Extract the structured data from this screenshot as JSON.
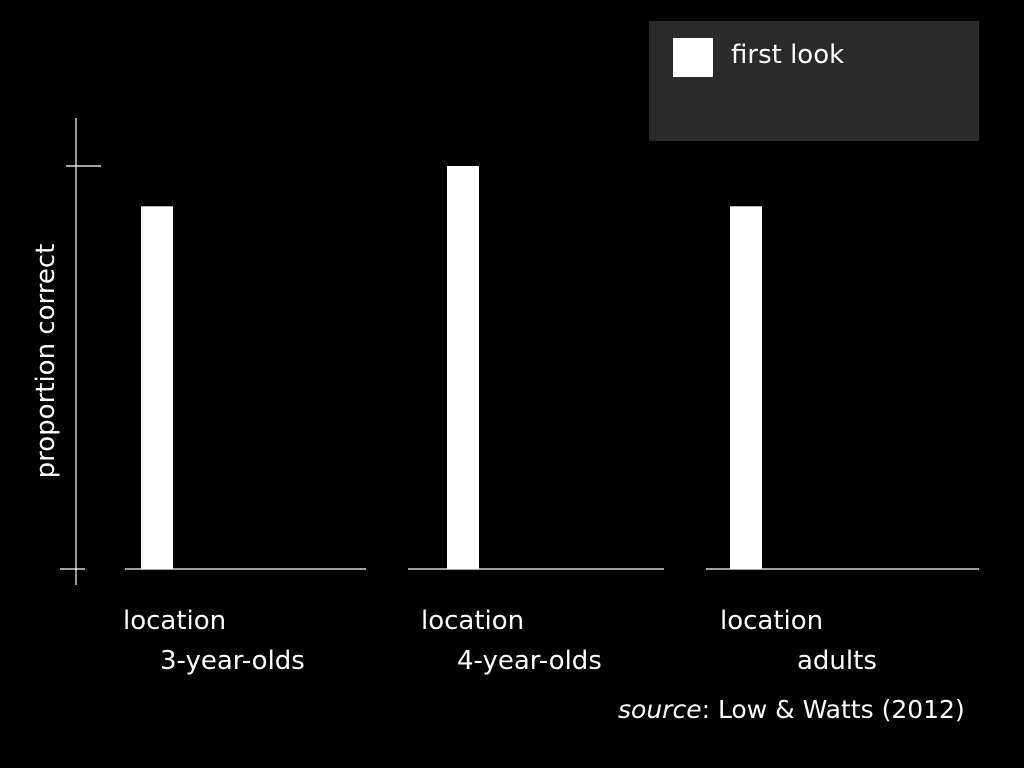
{
  "colors": {
    "background": "#000000",
    "foreground": "#ffffff",
    "legend_background": "#2a2a2a",
    "bar": "#ffffff"
  },
  "legend": {
    "entries": [
      {
        "label": "first look",
        "color": "#ffffff"
      }
    ],
    "placement": "top-right"
  },
  "source": {
    "prefix": "source",
    "text": ": Low & Watts (2012)"
  },
  "chart_data": {
    "type": "bar",
    "ylabel": "proportion correct",
    "ylim": [
      0,
      1
    ],
    "grid": false,
    "groups": [
      {
        "category": "location",
        "group": "3-year-olds"
      },
      {
        "category": "location",
        "group": "4-year-olds"
      },
      {
        "category": "location",
        "group": "adults"
      }
    ],
    "series": [
      {
        "name": "first look",
        "values": [
          0.9,
          1.0,
          0.9
        ]
      }
    ]
  }
}
